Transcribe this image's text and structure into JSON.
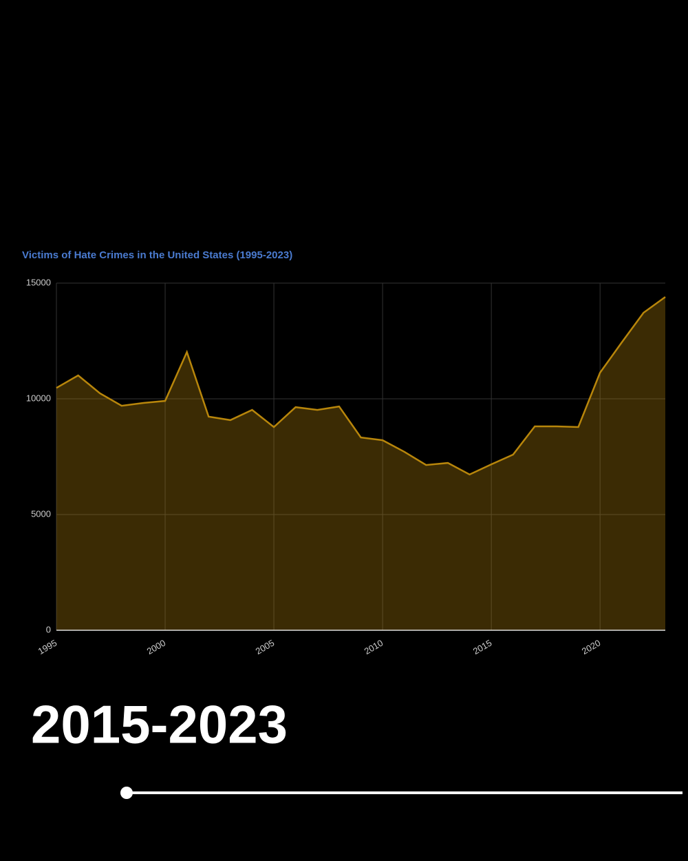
{
  "chart_data": {
    "type": "area",
    "title": "Victims of Hate Crimes in the United States (1995-2023)",
    "x": [
      1995,
      1996,
      1997,
      1998,
      1999,
      2000,
      2001,
      2002,
      2003,
      2004,
      2005,
      2006,
      2007,
      2008,
      2009,
      2010,
      2011,
      2012,
      2013,
      2014,
      2015,
      2016,
      2017,
      2018,
      2019,
      2020,
      2021,
      2022,
      2023
    ],
    "series": [
      {
        "name": "Victims",
        "color": "#b8860b",
        "values": [
          10470,
          11010,
          10240,
          9700,
          9820,
          9910,
          12020,
          9230,
          9080,
          9520,
          8780,
          9640,
          9520,
          9670,
          8330,
          8210,
          7710,
          7140,
          7230,
          6730,
          7170,
          7590,
          8810,
          8810,
          8780,
          11130,
          12440,
          13720,
          14400
        ]
      }
    ],
    "xlim": [
      1995,
      2023
    ],
    "xticks": [
      1995,
      2000,
      2005,
      2010,
      2015,
      2020
    ],
    "ylim": [
      0,
      15000
    ],
    "yticks": [
      0,
      5000,
      10000,
      15000
    ],
    "grid": true
  },
  "caption": "2015-2023"
}
